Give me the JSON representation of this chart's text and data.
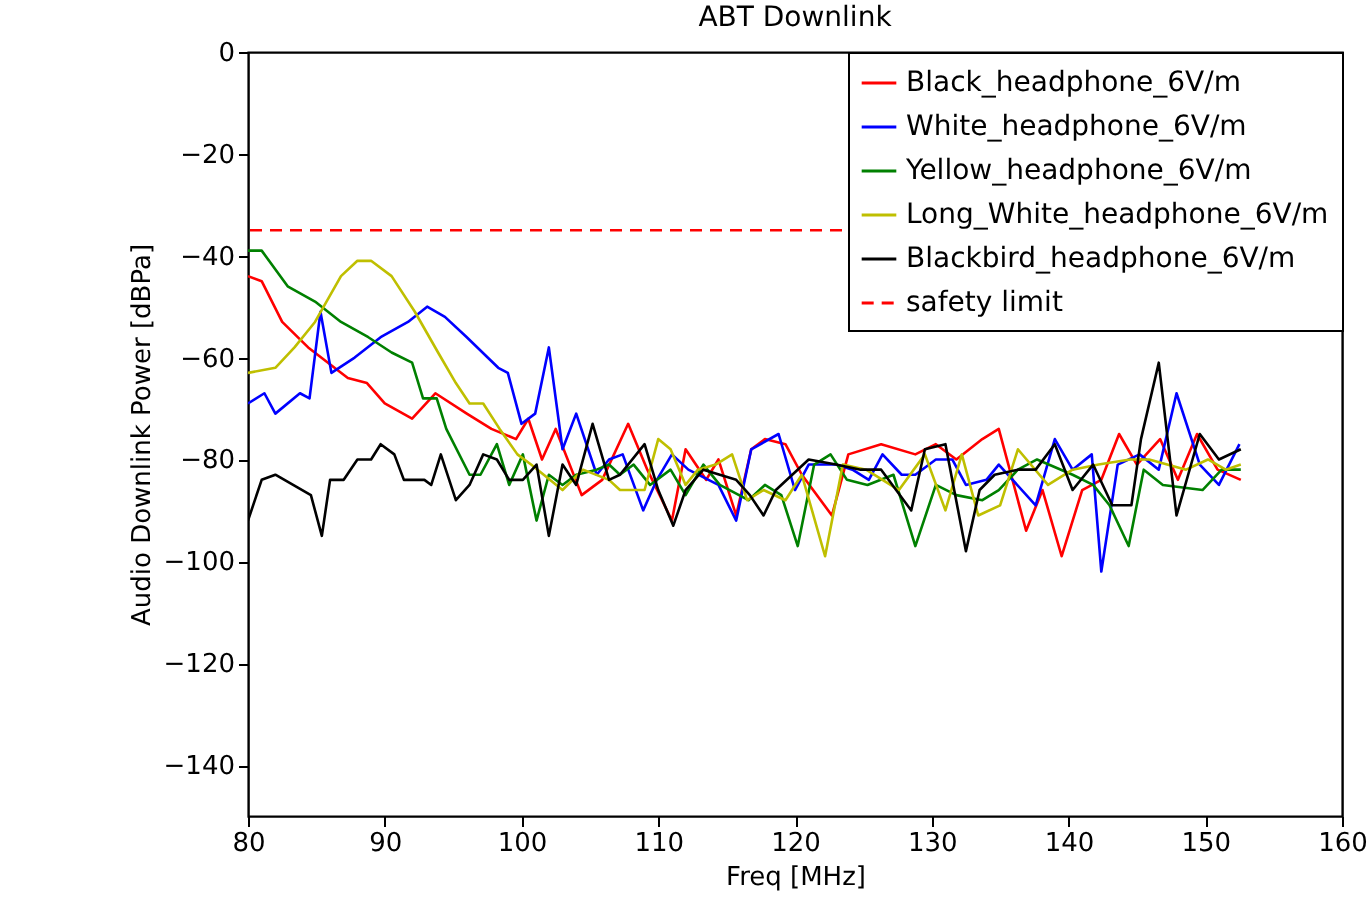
{
  "chart_data": {
    "type": "line",
    "title": "ABT Downlink",
    "xlabel": "Freq [MHz]",
    "ylabel": "Audio Downlink Power [dBPa]",
    "xlim": [
      80,
      160
    ],
    "xticks": [
      80,
      90,
      100,
      110,
      120,
      130,
      140,
      150,
      160
    ],
    "ylim": [
      -150,
      0
    ],
    "yticks": [
      -140,
      -120,
      -100,
      -80,
      -60,
      -40,
      -20,
      0
    ],
    "grid": false,
    "legend": "top right",
    "marker": "none",
    "line_style": "solid",
    "series": [
      {
        "name": "Black_headphone_6V/m",
        "color": "#ff0000",
        "x": [
          80,
          81,
          82.5,
          84.4,
          87.3,
          88.7,
          90,
          92,
          93.7,
          96,
          97.8,
          99.6,
          100.5,
          101.5,
          102.5,
          104.4,
          105.9,
          107.8,
          109.2,
          111,
          112,
          113.5,
          114.4,
          115.7,
          116.8,
          117.8,
          119.3,
          120.5,
          122.7,
          123.9,
          126.3,
          128.8,
          130.3,
          131.8,
          133.7,
          134.9,
          136.9,
          138.1,
          139.5,
          141,
          142.4,
          143.7,
          145,
          146.7,
          148,
          149.4,
          150.9,
          152.6
        ],
        "values": [
          -44,
          -45,
          -53,
          -58,
          -64,
          -65,
          -69,
          -72,
          -67,
          -71,
          -74,
          -76,
          -72,
          -80,
          -74,
          -87,
          -84,
          -73,
          -82,
          -92,
          -78,
          -84,
          -80,
          -91,
          -78,
          -76,
          -77,
          -83,
          -91,
          -79,
          -77,
          -79,
          -77,
          -80,
          -76,
          -74,
          -94,
          -86,
          -99,
          -86,
          -84,
          -75,
          -81,
          -76,
          -84,
          -75,
          -82,
          -84
        ]
      },
      {
        "name": "White_headphone_6V/m",
        "color": "#0000ff",
        "x": [
          80,
          81.2,
          82,
          83.8,
          84.5,
          85.3,
          86.1,
          87.8,
          89.7,
          91.7,
          93.1,
          94.4,
          96,
          98.3,
          99,
          100,
          101,
          102,
          103,
          104,
          105.5,
          106.4,
          107.4,
          108.9,
          109.9,
          111,
          112.2,
          114.4,
          115.7,
          116.8,
          118.8,
          120,
          121,
          123,
          124.2,
          125.4,
          126.4,
          127.8,
          128.8,
          130.3,
          131.5,
          132.5,
          134,
          134.9,
          137.6,
          139,
          140.3,
          141.7,
          142.4,
          143.6,
          145.2,
          146.6,
          147.9,
          149.6,
          151,
          152.5
        ],
        "values": [
          -69,
          -67,
          -71,
          -67,
          -68,
          -51,
          -63,
          -60,
          -56,
          -53,
          -50,
          -52,
          -56,
          -62,
          -63,
          -73,
          -71,
          -58,
          -78,
          -71,
          -83,
          -80,
          -79,
          -90,
          -84,
          -79,
          -82,
          -85,
          -92,
          -78,
          -75,
          -86,
          -81,
          -81,
          -82,
          -84,
          -79,
          -83,
          -83,
          -80,
          -80,
          -85,
          -84,
          -81,
          -89,
          -76,
          -82,
          -79,
          -102,
          -81,
          -79,
          -82,
          -67,
          -81,
          -85,
          -77
        ]
      },
      {
        "name": "Yellow_headphone_6V/m",
        "color": "#008000",
        "x": [
          80,
          81,
          82.9,
          84.9,
          86.8,
          88.8,
          90.5,
          92,
          92.8,
          93.8,
          94.5,
          96.2,
          97,
          98.2,
          99.1,
          100.1,
          101.1,
          102,
          103,
          104,
          105.5,
          106.4,
          107.2,
          108.2,
          109.4,
          110.9,
          112,
          113.3,
          114.5,
          116.6,
          117.8,
          119,
          120.2,
          121.4,
          122.6,
          123.8,
          125.3,
          127.2,
          128.8,
          130.3,
          131.8,
          133.7,
          134.9,
          136.3,
          137.7,
          140.3,
          141.8,
          143,
          144.4,
          145.5,
          146.9,
          149.8,
          151.2,
          152.6
        ],
        "values": [
          -39,
          -39,
          -46,
          -49,
          -53,
          -56,
          -59,
          -61,
          -68,
          -68,
          -74,
          -83,
          -83,
          -77,
          -85,
          -79,
          -92,
          -83,
          -85,
          -83,
          -82,
          -81,
          -83,
          -81,
          -85,
          -82,
          -87,
          -81,
          -85,
          -88,
          -85,
          -87,
          -97,
          -81,
          -79,
          -84,
          -85,
          -83,
          -97,
          -85,
          -87,
          -88,
          -86,
          -82,
          -80,
          -83,
          -85,
          -89,
          -97,
          -82,
          -85,
          -86,
          -82,
          -82
        ]
      },
      {
        "name": "Long_White_headphone_6V/m",
        "color": "#bfbf00",
        "x": [
          80,
          82,
          83.4,
          84.9,
          86.8,
          88,
          89,
          90.5,
          92.2,
          93.9,
          95.2,
          96.2,
          97.2,
          98.4,
          99.7,
          100.7,
          103,
          104.5,
          106.4,
          107.2,
          109,
          110,
          110.9,
          112,
          112.9,
          114.2,
          115.4,
          116.5,
          117.7,
          119.3,
          120.5,
          122.2,
          123.5,
          125.2,
          127.6,
          129.5,
          131,
          132.2,
          133.4,
          135,
          136.3,
          138.5,
          140.3,
          142.2,
          144.5,
          145.9,
          148.6,
          150.2,
          151.5,
          152.6
        ],
        "values": [
          -63,
          -62,
          -58,
          -53,
          -44,
          -41,
          -41,
          -44,
          -51,
          -59,
          -65,
          -69,
          -69,
          -74,
          -79,
          -81,
          -86,
          -82,
          -84,
          -86,
          -86,
          -76,
          -78,
          -85,
          -82,
          -81,
          -79,
          -88,
          -86,
          -88,
          -83,
          -99,
          -81,
          -82,
          -86,
          -79,
          -90,
          -79,
          -91,
          -89,
          -78,
          -85,
          -82,
          -81,
          -80,
          -80,
          -82,
          -80,
          -82,
          -81
        ]
      },
      {
        "name": "Blackbird_headphone_6V/m",
        "color": "#000000",
        "x": [
          80,
          81,
          82,
          83.3,
          84.6,
          85.4,
          86,
          87,
          88,
          89,
          89.7,
          90.7,
          91.4,
          92.9,
          93.4,
          94.1,
          95.2,
          96.2,
          97.2,
          98.2,
          99.1,
          100.1,
          101.1,
          102,
          103,
          104,
          105.2,
          106.4,
          107.2,
          109,
          110,
          111.1,
          112,
          113.3,
          115.7,
          116.7,
          117.7,
          118.6,
          121,
          123,
          124.8,
          126.3,
          128.5,
          129.5,
          131,
          132.5,
          133.5,
          134.6,
          136.3,
          137.6,
          139,
          140.3,
          141.8,
          143.2,
          144.6,
          145.3,
          146.6,
          147.9,
          149.6,
          151,
          152.6
        ],
        "values": [
          -92,
          -84,
          -83,
          -85,
          -87,
          -95,
          -84,
          -84,
          -80,
          -80,
          -77,
          -79,
          -84,
          -84,
          -85,
          -79,
          -88,
          -85,
          -79,
          -80,
          -84,
          -84,
          -81,
          -95,
          -81,
          -85,
          -73,
          -84,
          -83,
          -77,
          -86,
          -93,
          -86,
          -82,
          -84,
          -87,
          -91,
          -86,
          -80,
          -81,
          -82,
          -82,
          -90,
          -78,
          -77,
          -98,
          -86,
          -83,
          -82,
          -82,
          -77,
          -86,
          -81,
          -89,
          -89,
          -76,
          -61,
          -91,
          -75,
          -80,
          -78
        ]
      }
    ],
    "ref_lines": [
      {
        "axis": "y",
        "value": -35,
        "label": "safety limit",
        "color": "#ff0000",
        "line_style": "dashed"
      }
    ]
  }
}
